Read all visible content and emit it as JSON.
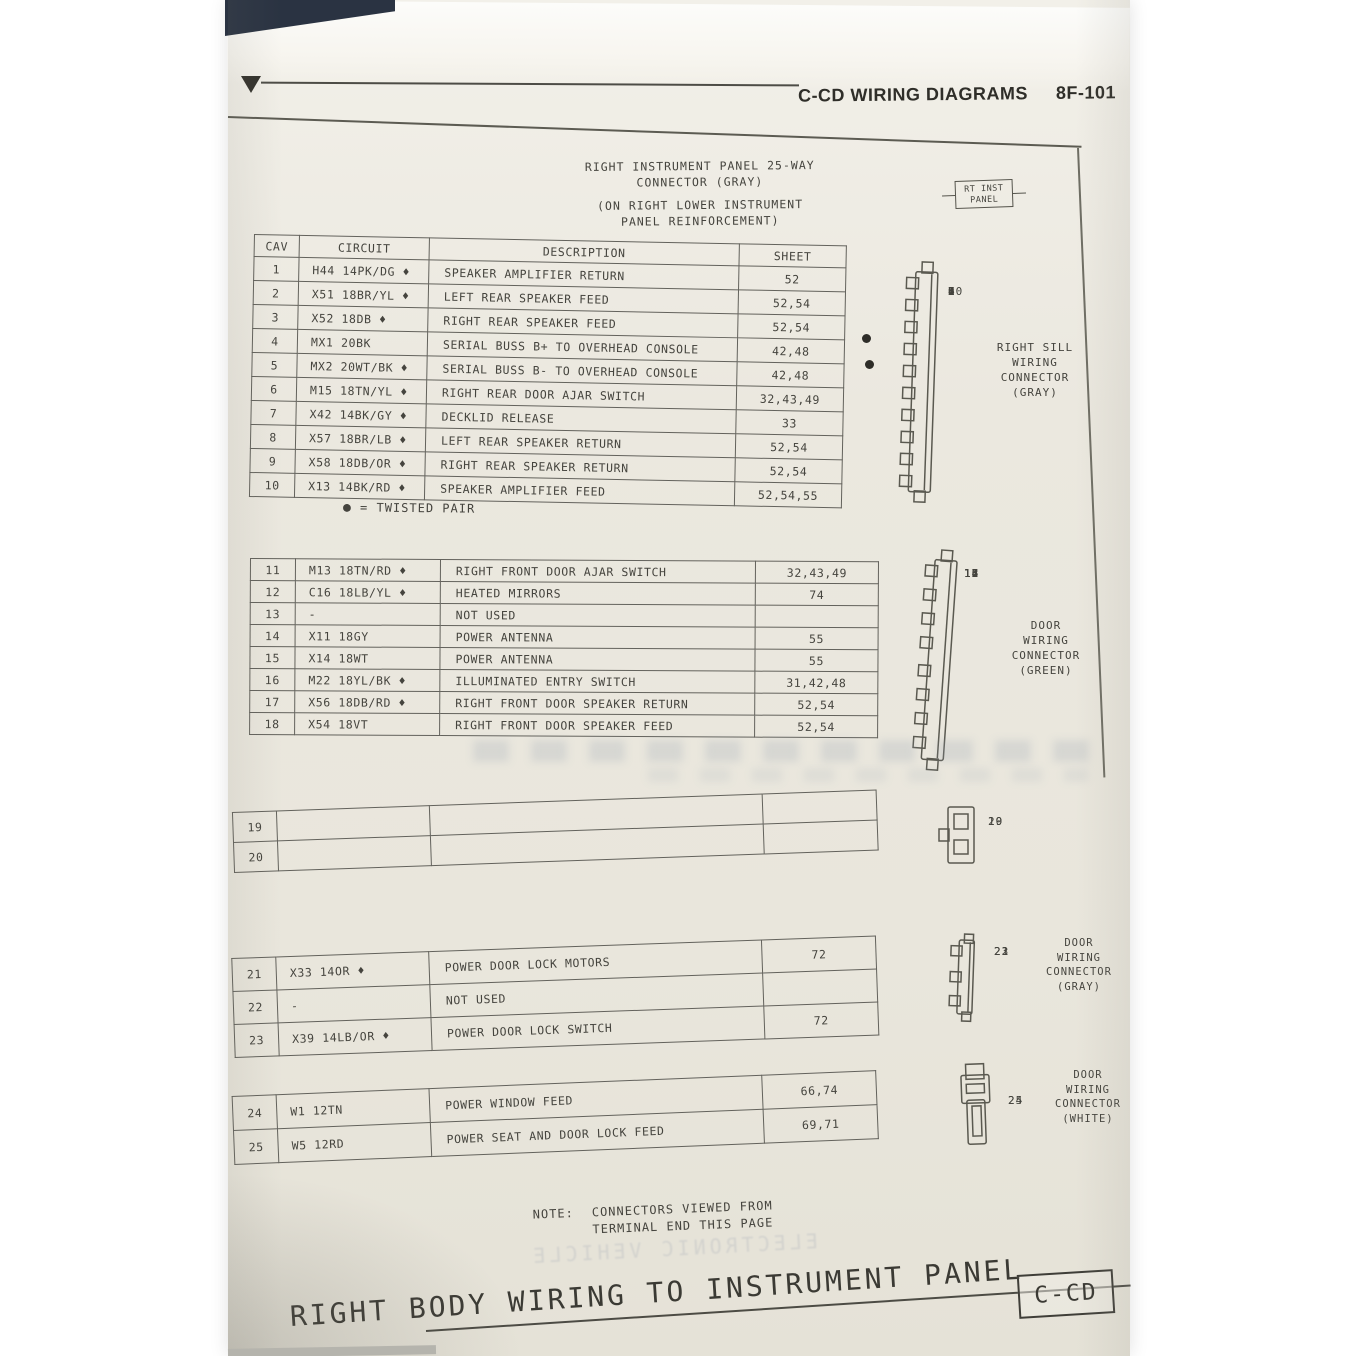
{
  "header": {
    "title": "C-CD WIRING DIAGRAMS",
    "page_number": "8F-101"
  },
  "title_block": {
    "line1": "RIGHT INSTRUMENT PANEL 25-WAY",
    "line2": "CONNECTOR  (GRAY)",
    "line3": "(ON RIGHT LOWER INSTRUMENT",
    "line4": "PANEL REINFORCEMENT)"
  },
  "callout": {
    "line1": "RT INST",
    "line2": "PANEL"
  },
  "table_headers": {
    "cav": "CAV",
    "circuit": "CIRCUIT",
    "description": "DESCRIPTION",
    "sheet": "SHEET"
  },
  "sections": {
    "s1": {
      "rows": [
        {
          "cav": "1",
          "circuit": "H44 14PK/DG ♦",
          "description": "SPEAKER AMPLIFIER RETURN",
          "sheet": "52"
        },
        {
          "cav": "2",
          "circuit": "X51 18BR/YL ♦",
          "description": "LEFT REAR SPEAKER FEED",
          "sheet": "52,54"
        },
        {
          "cav": "3",
          "circuit": "X52 18DB  ♦",
          "description": "RIGHT REAR SPEAKER FEED",
          "sheet": "52,54"
        },
        {
          "cav": "4",
          "circuit": "MX1 20BK",
          "description": "SERIAL BUSS B+ TO OVERHEAD CONSOLE",
          "sheet": "42,48"
        },
        {
          "cav": "5",
          "circuit": "MX2 20WT/BK ♦",
          "description": "SERIAL BUSS B- TO OVERHEAD CONSOLE",
          "sheet": "42,48"
        },
        {
          "cav": "6",
          "circuit": "M15 18TN/YL ♦",
          "description": "RIGHT REAR DOOR AJAR SWITCH",
          "sheet": "32,43,49"
        },
        {
          "cav": "7",
          "circuit": "X42 14BK/GY ♦",
          "description": "DECKLID RELEASE",
          "sheet": "33"
        },
        {
          "cav": "8",
          "circuit": "X57 18BR/LB ♦",
          "description": "LEFT REAR SPEAKER RETURN",
          "sheet": "52,54"
        },
        {
          "cav": "9",
          "circuit": "X58 18DB/OR ♦",
          "description": "RIGHT REAR SPEAKER RETURN",
          "sheet": "52,54"
        },
        {
          "cav": "10",
          "circuit": "X13 14BK/RD ♦",
          "description": "SPEAKER AMPLIFIER FEED",
          "sheet": "52,54,55"
        }
      ]
    },
    "s2": {
      "rows": [
        {
          "cav": "11",
          "circuit": "M13 18TN/RD ♦",
          "description": "RIGHT FRONT DOOR AJAR SWITCH",
          "sheet": "32,43,49"
        },
        {
          "cav": "12",
          "circuit": "C16 18LB/YL ♦",
          "description": "HEATED MIRRORS",
          "sheet": "74"
        },
        {
          "cav": "13",
          "circuit": "-",
          "description": "NOT USED",
          "sheet": ""
        },
        {
          "cav": "14",
          "circuit": "X11 18GY",
          "description": "POWER ANTENNA",
          "sheet": "55"
        },
        {
          "cav": "15",
          "circuit": "X14 18WT",
          "description": "POWER ANTENNA",
          "sheet": "55"
        },
        {
          "cav": "16",
          "circuit": "M22 18YL/BK ♦",
          "description": "ILLUMINATED ENTRY SWITCH",
          "sheet": "31,42,48"
        },
        {
          "cav": "17",
          "circuit": "X56 18DB/RD ♦",
          "description": "RIGHT FRONT DOOR SPEAKER RETURN",
          "sheet": "52,54"
        },
        {
          "cav": "18",
          "circuit": "X54 18VT",
          "description": "RIGHT FRONT DOOR SPEAKER FEED",
          "sheet": "52,54"
        }
      ]
    },
    "s3": {
      "rows": [
        {
          "cav": "19",
          "circuit": "",
          "description": "",
          "sheet": ""
        },
        {
          "cav": "20",
          "circuit": "",
          "description": "",
          "sheet": ""
        }
      ]
    },
    "s4": {
      "rows": [
        {
          "cav": "21",
          "circuit": "X33 14OR ♦",
          "description": "POWER DOOR LOCK MOTORS",
          "sheet": "72"
        },
        {
          "cav": "22",
          "circuit": "-",
          "description": "NOT USED",
          "sheet": ""
        },
        {
          "cav": "23",
          "circuit": "X39 14LB/OR ♦",
          "description": "POWER DOOR LOCK SWITCH",
          "sheet": "72"
        }
      ]
    },
    "s5": {
      "rows": [
        {
          "cav": "24",
          "circuit": "W1 12TN",
          "description": "POWER WINDOW FEED",
          "sheet": "66,74"
        },
        {
          "cav": "25",
          "circuit": "W5 12RD",
          "description": "POWER SEAT AND DOOR LOCK FEED",
          "sheet": "69,71"
        }
      ]
    }
  },
  "legend": {
    "symbol": "●",
    "text": "= TWISTED PAIR"
  },
  "connectors": {
    "right_sill": {
      "pins": [
        "1",
        "2",
        "3",
        "4",
        "5",
        "6",
        "7",
        "8",
        "9",
        "10"
      ],
      "label": [
        "RIGHT SILL",
        "WIRING",
        "CONNECTOR",
        "(GRAY)"
      ]
    },
    "door_green": {
      "pins": [
        "11",
        "12",
        "13",
        "14",
        "15",
        "16",
        "17",
        "18"
      ],
      "label": [
        "DOOR",
        "WIRING",
        "CONNECTOR",
        "(GREEN)"
      ]
    },
    "pair_19_20": {
      "pins": [
        "19",
        "20"
      ],
      "label": []
    },
    "door_gray": {
      "pins": [
        "21",
        "22",
        "23"
      ],
      "label": [
        "DOOR",
        "WIRING",
        "CONNECTOR",
        "(GRAY)"
      ]
    },
    "door_white": {
      "pins": [
        "24",
        "25"
      ],
      "label": [
        "DOOR",
        "WIRING",
        "CONNECTOR",
        "(WHITE)"
      ]
    }
  },
  "note": {
    "label": "NOTE:",
    "line1": "CONNECTORS VIEWED FROM",
    "line2": "TERMINAL END THIS PAGE"
  },
  "footer": {
    "title": "RIGHT BODY WIRING TO INSTRUMENT PANEL",
    "tag": "C-CD"
  },
  "ghost_text": "ELECTRONIC VEHICLE",
  "colors": {
    "page": "#ebe8df",
    "ink": "#45443e",
    "table_line": "#63625c",
    "binder": "#2a3342"
  }
}
